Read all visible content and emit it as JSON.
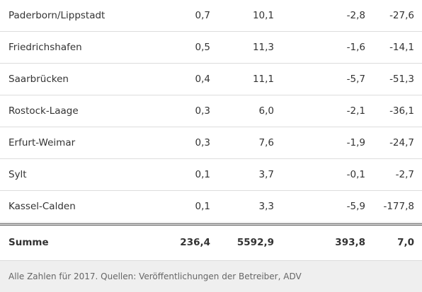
{
  "table": {
    "rows": [
      [
        "Paderborn/Lippstadt",
        "0,7",
        "10,1",
        "-2,8",
        "-27,6"
      ],
      [
        "Friedrichshafen",
        "0,5",
        "11,3",
        "-1,6",
        "-14,1"
      ],
      [
        "Saarbrücken",
        "0,4",
        "11,1",
        "-5,7",
        "-51,3"
      ],
      [
        "Rostock-Laage",
        "0,3",
        "6,0",
        "-2,1",
        "-36,1"
      ],
      [
        "Erfurt-Weimar",
        "0,3",
        "7,6",
        "-1,9",
        "-24,7"
      ],
      [
        "Sylt",
        "0,1",
        "3,7",
        "-0,1",
        "-2,7"
      ],
      [
        "Kassel-Calden",
        "0,1",
        "3,3",
        "-5,9",
        "-177,8"
      ]
    ],
    "total": [
      "Summe",
      "236,4",
      "5592,9",
      "393,8",
      "7,0"
    ]
  },
  "footer": "Alle Zahlen für 2017. Quellen: Veröffentlichungen der Betreiber, ADV"
}
